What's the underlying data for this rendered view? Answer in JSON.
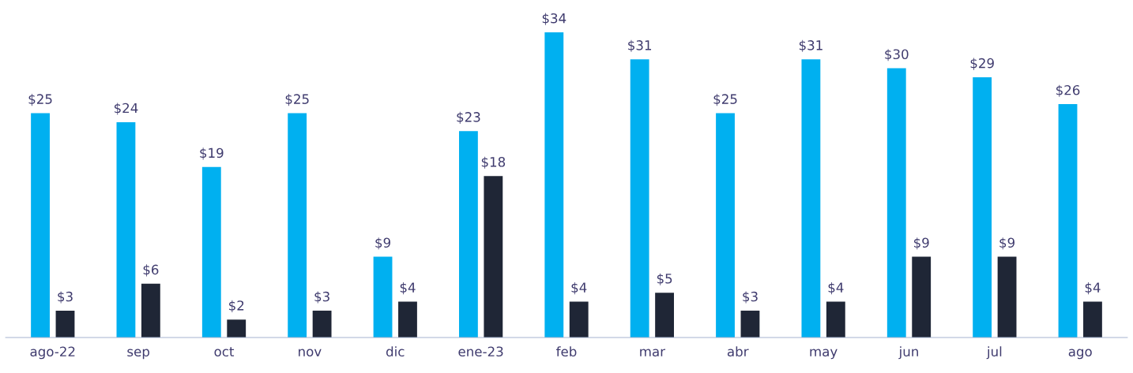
{
  "chart_data": {
    "type": "bar",
    "categories": [
      "ago-22",
      "sep",
      "oct",
      "nov",
      "dic",
      "ene-23",
      "feb",
      "mar",
      "abr",
      "may",
      "jun",
      "jul",
      "ago"
    ],
    "series": [
      {
        "color": "#00b0f0",
        "values": [
          25,
          24,
          19,
          25,
          9,
          23,
          34,
          31,
          25,
          31,
          30,
          29,
          26
        ],
        "value_labels": [
          "$25",
          "$24",
          "$19",
          "$25",
          "$9",
          "$23",
          "$34",
          "$31",
          "$25",
          "$31",
          "$30",
          "$29",
          "$26"
        ]
      },
      {
        "color": "#1f2636",
        "values": [
          3,
          6,
          2,
          3,
          4,
          18,
          4,
          5,
          3,
          4,
          9,
          9,
          4
        ],
        "value_labels": [
          "$3",
          "$6",
          "$2",
          "$3",
          "$4",
          "$18",
          "$4",
          "$5",
          "$3",
          "$4",
          "$9",
          "$9",
          "$4"
        ]
      }
    ],
    "grid": false,
    "legend": false
  }
}
